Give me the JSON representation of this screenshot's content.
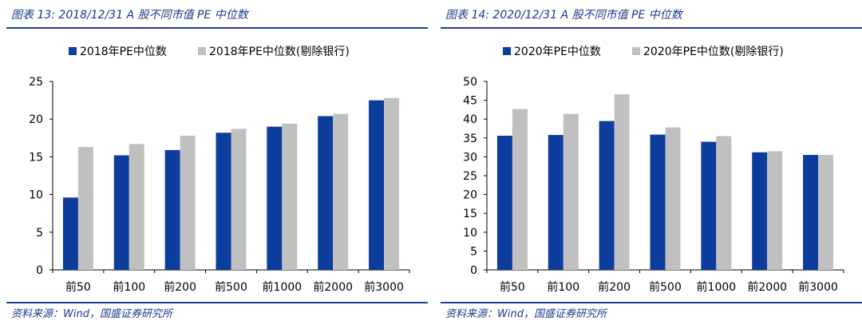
{
  "chart_data": [
    {
      "type": "bar",
      "title": "图表 13:  2018/12/31 A 股不同市值 PE 中位数",
      "categories": [
        "前50",
        "前100",
        "前200",
        "前500",
        "前1000",
        "前2000",
        "前3000"
      ],
      "series": [
        {
          "name": "2018年PE中位数",
          "values": [
            9.6,
            15.2,
            15.9,
            18.2,
            19.0,
            20.4,
            22.5
          ],
          "color": "#0d3d9c"
        },
        {
          "name": "2018年PE中位数(剔除银行)",
          "values": [
            16.3,
            16.7,
            17.8,
            18.7,
            19.4,
            20.7,
            22.8
          ],
          "color": "#c0c0c0"
        }
      ],
      "ylim": [
        0,
        25
      ],
      "yticks": [
        "0",
        "5",
        "10",
        "15",
        "20",
        "25"
      ],
      "legend": "top",
      "source": "资料来源：Wind，国盛证券研究所"
    },
    {
      "type": "bar",
      "title": "图表 14:  2020/12/31 A 股不同市值 PE 中位数",
      "categories": [
        "前50",
        "前100",
        "前200",
        "前500",
        "前1000",
        "前2000",
        "前3000"
      ],
      "series": [
        {
          "name": "2020年PE中位数",
          "values": [
            35.6,
            35.8,
            39.5,
            35.9,
            34.0,
            31.2,
            30.5
          ],
          "color": "#0d3d9c"
        },
        {
          "name": "2020年PE中位数(剔除银行)",
          "values": [
            42.7,
            41.4,
            46.6,
            37.8,
            35.5,
            31.5,
            30.5
          ],
          "color": "#c0c0c0"
        }
      ],
      "ylim": [
        0,
        50
      ],
      "yticks": [
        "0",
        "5",
        "10",
        "15",
        "20",
        "25",
        "30",
        "35",
        "40",
        "45",
        "50"
      ],
      "legend": "top",
      "source": "资料来源：Wind，国盛证券研究所"
    }
  ]
}
